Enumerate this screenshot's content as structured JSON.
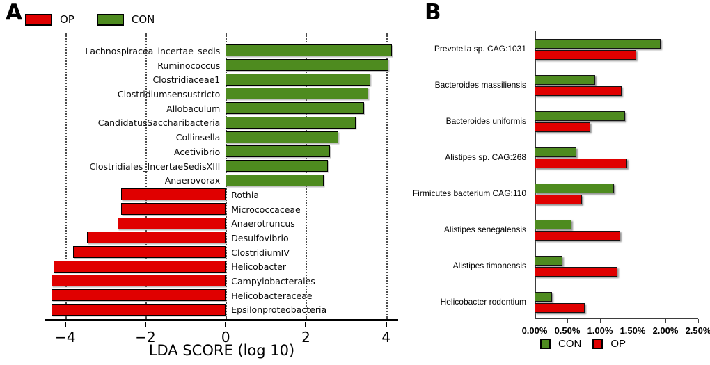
{
  "accent_colors": {
    "op_red": "#e00000",
    "con_green": "#4e8b1f"
  },
  "chart_data": [
    {
      "id": "A",
      "panel_label": "A",
      "type": "bar",
      "orientation": "horizontal-diverging",
      "xlabel": "LDA SCORE (log 10)",
      "xlim": [
        -4.5,
        4.3
      ],
      "xtick_values": [
        -4,
        -2,
        0,
        2,
        4
      ],
      "xticks": [
        "−4",
        "−2",
        "0",
        "2",
        "4"
      ],
      "grid": "dotted-vertical",
      "legend_position": "top-left",
      "legend": [
        {
          "name": "OP",
          "color": "#e00000"
        },
        {
          "name": "CON",
          "color": "#4e8b1f"
        }
      ],
      "bars": [
        {
          "label": "Lachnospiracea_incertae_sedis",
          "group": "CON",
          "value": 4.15
        },
        {
          "label": "Ruminococcus",
          "group": "CON",
          "value": 4.05
        },
        {
          "label": "Clostridiaceae1",
          "group": "CON",
          "value": 3.6
        },
        {
          "label": "Clostridiumsensustricto",
          "group": "CON",
          "value": 3.55
        },
        {
          "label": "Allobaculum",
          "group": "CON",
          "value": 3.45
        },
        {
          "label": "CandidatusSaccharibacteria",
          "group": "CON",
          "value": 3.25
        },
        {
          "label": "Collinsella",
          "group": "CON",
          "value": 2.8
        },
        {
          "label": "Acetivibrio",
          "group": "CON",
          "value": 2.6
        },
        {
          "label": "Clostridiales_IncertaeSedisXIII",
          "group": "CON",
          "value": 2.55
        },
        {
          "label": "Anaerovorax",
          "group": "CON",
          "value": 2.45
        },
        {
          "label": "Rothia",
          "group": "OP",
          "value": -2.6
        },
        {
          "label": "Micrococcaceae",
          "group": "OP",
          "value": -2.6
        },
        {
          "label": "Anaerotruncus",
          "group": "OP",
          "value": -2.7
        },
        {
          "label": "Desulfovibrio",
          "group": "OP",
          "value": -3.45
        },
        {
          "label": "ClostridiumIV",
          "group": "OP",
          "value": -3.8
        },
        {
          "label": "Helicobacter",
          "group": "OP",
          "value": -4.3
        },
        {
          "label": "Campylobacterales",
          "group": "OP",
          "value": -4.35
        },
        {
          "label": "Helicobacteraceae",
          "group": "OP",
          "value": -4.35
        },
        {
          "label": "Epsilonproteobacteria",
          "group": "OP",
          "value": -4.35
        }
      ]
    },
    {
      "id": "B",
      "panel_label": "B",
      "type": "bar",
      "orientation": "horizontal-grouped",
      "unit": "percent",
      "xlim": [
        0,
        2.5
      ],
      "xtick_values": [
        0,
        0.5,
        1.0,
        1.5,
        2.0,
        2.5
      ],
      "xticks": [
        "0.00%",
        "0.50%",
        "1.00%",
        "1.50%",
        "2.00%",
        "2.50%"
      ],
      "legend_position": "bottom",
      "legend": [
        {
          "name": "CON",
          "color": "#4e8b1f"
        },
        {
          "name": "OP",
          "color": "#e00000"
        }
      ],
      "categories": [
        "Prevotella sp. CAG:1031",
        "Bacteroides massiliensis",
        "Bacteroides uniformis",
        "Alistipes sp. CAG:268",
        "Firmicutes bacterium CAG:110",
        "Alistipes senegalensis",
        "Alistipes timonensis",
        "Helicobacter rodentium"
      ],
      "series": [
        {
          "name": "CON",
          "color": "#4e8b1f",
          "values": [
            1.93,
            0.93,
            1.38,
            0.64,
            1.21,
            0.56,
            0.43,
            0.27
          ]
        },
        {
          "name": "OP",
          "color": "#e00000",
          "values": [
            1.55,
            1.33,
            0.85,
            1.42,
            0.72,
            1.31,
            1.27,
            0.77
          ]
        }
      ]
    }
  ]
}
